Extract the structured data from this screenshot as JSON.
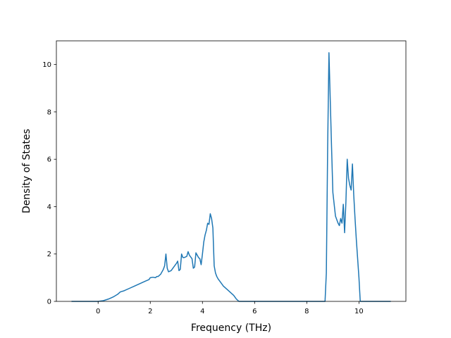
{
  "chart_data": {
    "type": "line",
    "title": "",
    "xlabel": "Frequency (THz)",
    "ylabel": "Density of States",
    "xlim": [
      -1.6,
      11.8
    ],
    "ylim": [
      0,
      11
    ],
    "xticks": [
      0,
      2,
      4,
      6,
      8,
      10
    ],
    "yticks": [
      0,
      2,
      4,
      6,
      8,
      10
    ],
    "xtick_labels": [
      "0",
      "2",
      "4",
      "6",
      "8",
      "10"
    ],
    "ytick_labels": [
      "0",
      "2",
      "4",
      "6",
      "8",
      "10"
    ],
    "grid": false,
    "legend": "none",
    "line_color": "#1f77b4",
    "series": [
      {
        "x": [
          -1.0,
          -0.5,
          0.0,
          0.2,
          0.4,
          0.6,
          0.75,
          0.85,
          1.0,
          1.2,
          1.4,
          1.6,
          1.8,
          1.95,
          2.0,
          2.1,
          2.2,
          2.25,
          2.3,
          2.4,
          2.5,
          2.55,
          2.6,
          2.65,
          2.7,
          2.8,
          2.9,
          3.0,
          3.05,
          3.1,
          3.15,
          3.2,
          3.25,
          3.3,
          3.4,
          3.45,
          3.5,
          3.6,
          3.65,
          3.7,
          3.75,
          3.8,
          3.85,
          3.9,
          3.95,
          4.0,
          4.05,
          4.1,
          4.15,
          4.2,
          4.25,
          4.3,
          4.35,
          4.4,
          4.45,
          4.5,
          4.55,
          4.6,
          4.7,
          4.8,
          5.0,
          5.2,
          5.3,
          5.4,
          5.5,
          6.0,
          7.0,
          8.0,
          8.5,
          8.7,
          8.75,
          8.8,
          8.85,
          8.9,
          8.95,
          9.0,
          9.1,
          9.2,
          9.25,
          9.3,
          9.35,
          9.4,
          9.45,
          9.5,
          9.55,
          9.6,
          9.65,
          9.7,
          9.75,
          9.8,
          9.85,
          9.9,
          9.95,
          10.0,
          10.05,
          10.1,
          10.15,
          10.2,
          10.5,
          11.0,
          11.2
        ],
        "y": [
          0.0,
          0.0,
          0.0,
          0.03,
          0.1,
          0.2,
          0.3,
          0.4,
          0.45,
          0.55,
          0.65,
          0.75,
          0.85,
          0.92,
          1.0,
          1.02,
          1.0,
          1.05,
          1.05,
          1.15,
          1.35,
          1.5,
          2.0,
          1.4,
          1.25,
          1.3,
          1.45,
          1.6,
          1.7,
          1.3,
          1.35,
          2.0,
          1.85,
          1.85,
          1.9,
          2.1,
          1.95,
          1.8,
          1.4,
          1.45,
          2.05,
          1.95,
          1.85,
          1.8,
          1.55,
          2.0,
          2.5,
          2.8,
          3.0,
          3.3,
          3.25,
          3.7,
          3.5,
          3.1,
          1.5,
          1.2,
          1.05,
          0.95,
          0.8,
          0.65,
          0.45,
          0.25,
          0.1,
          0.0,
          0.0,
          0.0,
          0.0,
          0.0,
          0.0,
          0.0,
          1.2,
          6.5,
          10.5,
          8.5,
          6.5,
          4.6,
          3.6,
          3.3,
          3.2,
          3.5,
          3.3,
          4.1,
          2.9,
          4.2,
          6.0,
          5.2,
          4.9,
          4.7,
          5.8,
          4.5,
          3.5,
          2.6,
          1.8,
          1.0,
          0.0,
          0.0,
          0.0,
          0.0,
          0.0,
          0.0,
          0.0
        ]
      }
    ]
  }
}
